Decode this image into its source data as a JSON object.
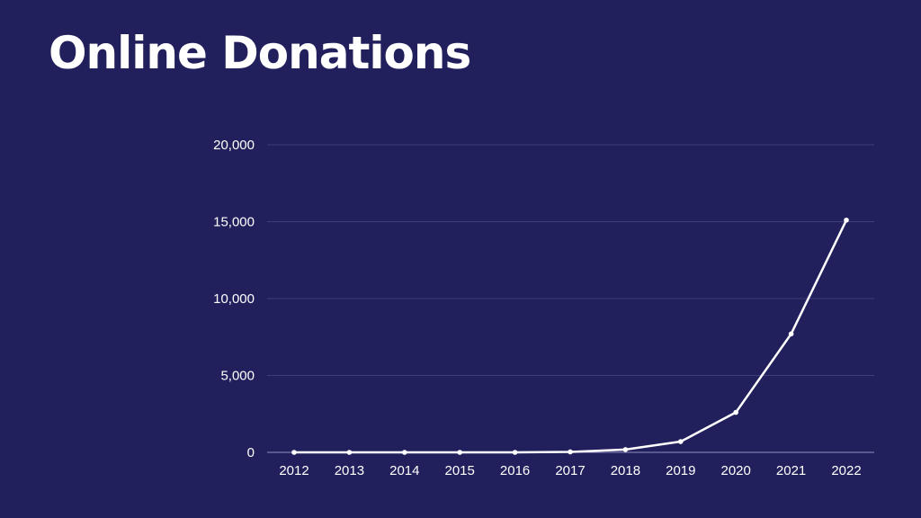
{
  "title": "Online Donations",
  "colors": {
    "background": "#21205c",
    "line": "#ffffff",
    "grid": "#3e3d78",
    "text": "#ffffff"
  },
  "chart_data": {
    "type": "line",
    "categories": [
      "2012",
      "2013",
      "2014",
      "2015",
      "2016",
      "2017",
      "2018",
      "2019",
      "2020",
      "2021",
      "2022"
    ],
    "series": [
      {
        "values": [
          0,
          0,
          0,
          0,
          0,
          30,
          180,
          700,
          2600,
          7700,
          15100
        ]
      }
    ],
    "ylim": [
      0,
      20000
    ],
    "yticks": [
      0,
      5000,
      10000,
      15000,
      20000
    ],
    "ytick_labels": [
      "0",
      "5,000",
      "10,000",
      "15,000",
      "20,000"
    ],
    "grid": true,
    "markers": true
  }
}
